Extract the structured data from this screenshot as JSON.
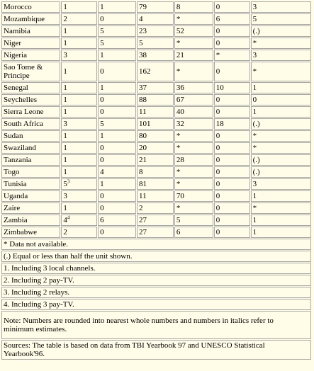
{
  "rows": [
    {
      "country": "Morocco",
      "c1": "1",
      "c1_sup": "",
      "c2": "1",
      "c3": "79",
      "c4": "8",
      "c5": "0",
      "c6": "3"
    },
    {
      "country": "Mozambique",
      "c1": "2",
      "c1_sup": "",
      "c2": "0",
      "c3": "4",
      "c4": "*",
      "c5": "6",
      "c6": "5"
    },
    {
      "country": "Namibia",
      "c1": "1",
      "c1_sup": "",
      "c2": "5",
      "c3": "23",
      "c4": "52",
      "c5": "0",
      "c6": "(.)"
    },
    {
      "country": "Niger",
      "c1": "1",
      "c1_sup": "",
      "c2": "5",
      "c3": "5",
      "c4": "*",
      "c5": "0",
      "c6": "*"
    },
    {
      "country": "Nigeria",
      "c1": "3",
      "c1_sup": "",
      "c2": "1",
      "c3": "38",
      "c4": "21",
      "c5": "*",
      "c6": "3"
    },
    {
      "country": "Sao Tome & Principe",
      "c1": "1",
      "c1_sup": "",
      "c2": "0",
      "c3": "162",
      "c4": "*",
      "c5": "0",
      "c6": "*"
    },
    {
      "country": "Senegal",
      "c1": "1",
      "c1_sup": "",
      "c2": "1",
      "c3": "37",
      "c4": "36",
      "c5": "10",
      "c6": "1"
    },
    {
      "country": "Seychelles",
      "c1": "1",
      "c1_sup": "",
      "c2": "0",
      "c3": "88",
      "c4": "67",
      "c5": "0",
      "c6": "0"
    },
    {
      "country": "Sierra Leone",
      "c1": "1",
      "c1_sup": "",
      "c2": "0",
      "c3": "11",
      "c4": "40",
      "c5": "0",
      "c6": "1"
    },
    {
      "country": "South Africa",
      "c1": "3",
      "c1_sup": "",
      "c2": "5",
      "c3": "101",
      "c4": "32",
      "c5": "18",
      "c6": "(.)"
    },
    {
      "country": "Sudan",
      "c1": "1",
      "c1_sup": "",
      "c2": "1",
      "c3": "80",
      "c4": "*",
      "c5": "0",
      "c6": "*"
    },
    {
      "country": "Swaziland",
      "c1": "1",
      "c1_sup": "",
      "c2": "0",
      "c3": "20",
      "c4": "*",
      "c5": "0",
      "c6": "*"
    },
    {
      "country": "Tanzania",
      "c1": "1",
      "c1_sup": "",
      "c2": "0",
      "c3": "21",
      "c4": "28",
      "c5": "0",
      "c6": "(.)"
    },
    {
      "country": "Togo",
      "c1": "1",
      "c1_sup": "",
      "c2": "4",
      "c3": "8",
      "c4": "*",
      "c5": "0",
      "c6": "(.)"
    },
    {
      "country": "Tunisia",
      "c1": "5",
      "c1_sup": "3",
      "c2": "1",
      "c3": "81",
      "c4": "*",
      "c5": "0",
      "c6": "3"
    },
    {
      "country": "Uganda",
      "c1": "3",
      "c1_sup": "",
      "c2": "0",
      "c3": "11",
      "c4": "70",
      "c5": "0",
      "c6": "1"
    },
    {
      "country": "Zaire",
      "c1": "1",
      "c1_sup": "",
      "c2": "0",
      "c3": "2",
      "c4": "*",
      "c5": "0",
      "c6": "*"
    },
    {
      "country": "Zambia",
      "c1": "4",
      "c1_sup": "4",
      "c2": "6",
      "c3": "27",
      "c4": "5",
      "c5": "0",
      "c6": "1"
    },
    {
      "country": "Zimbabwe",
      "c1": "2",
      "c1_sup": "",
      "c2": "0",
      "c3": "27",
      "c4": "6",
      "c5": "0",
      "c6": "1"
    }
  ],
  "notes": {
    "not_available": "* Data not available.",
    "equal_less": "(.) Equal or less than half the unit shown.",
    "fn1": "1. Including 3 local channels.",
    "fn2": "2. Including 2 pay-TV.",
    "fn3": "3. Including 2 relays.",
    "fn4": "4. Including 3 pay-TV.",
    "rounding": "Note: Numbers are rounded into nearest whole numbers and numbers in italics refer to minimum estimates.",
    "sources": "Sources: The table is based on data from TBI Yearbook 97 and UNESCO Statistical Yearbook'96."
  }
}
